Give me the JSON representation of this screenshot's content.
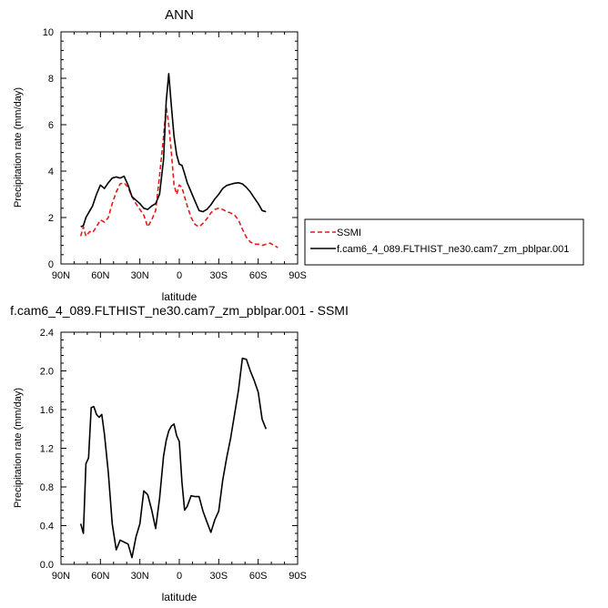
{
  "chart_data": [
    {
      "type": "line",
      "title": "ANN",
      "xlabel": "latitude",
      "ylabel": "Precipitation rate (mm/day)",
      "xlim": [
        90,
        -90
      ],
      "ylim": [
        0,
        10
      ],
      "x_ticks": [
        90,
        60,
        30,
        0,
        -30,
        -60,
        -90
      ],
      "x_tick_labels": [
        "90N",
        "60N",
        "30N",
        "0",
        "30S",
        "60S",
        "90S"
      ],
      "y_ticks": [
        0,
        2,
        4,
        6,
        8,
        10
      ],
      "y_tick_labels": [
        "0",
        "2",
        "4",
        "6",
        "8",
        "10"
      ],
      "legend_position": "right of plot, lower",
      "series": [
        {
          "name": "SSMI",
          "color": "#e41a1c",
          "dash": "dashed",
          "x": [
            75,
            73,
            71,
            68,
            66,
            63,
            60,
            57,
            54,
            51,
            48,
            45,
            42,
            39,
            36,
            33,
            30,
            27,
            24,
            21,
            18,
            15,
            12,
            10,
            8,
            6,
            4,
            2,
            0,
            -2,
            -4,
            -6,
            -9,
            -12,
            -15,
            -18,
            -21,
            -24,
            -27,
            -30,
            -33,
            -36,
            -39,
            -42,
            -45,
            -48,
            -51,
            -54,
            -57,
            -60,
            -63,
            -66,
            -69,
            -72,
            -75
          ],
          "y": [
            1.2,
            1.6,
            1.2,
            1.4,
            1.35,
            1.6,
            1.9,
            1.8,
            2.0,
            2.6,
            3.1,
            3.45,
            3.5,
            3.3,
            2.9,
            2.6,
            2.35,
            2.1,
            1.6,
            1.9,
            2.3,
            3.8,
            5.5,
            6.8,
            6.0,
            4.8,
            3.4,
            3.0,
            3.4,
            3.3,
            2.9,
            2.5,
            2.0,
            1.7,
            1.6,
            1.75,
            1.95,
            2.2,
            2.35,
            2.4,
            2.35,
            2.25,
            2.2,
            2.1,
            1.9,
            1.5,
            1.15,
            0.95,
            0.85,
            0.85,
            0.8,
            0.85,
            0.9,
            0.8,
            0.7
          ]
        },
        {
          "name": "f.cam6_4_089.FLTHIST_ne30.cam7_zm_pblpar.001",
          "color": "#000000",
          "dash": "solid",
          "x": [
            75,
            73,
            71,
            68,
            66,
            63,
            60,
            57,
            54,
            51,
            48,
            45,
            42,
            39,
            36,
            33,
            30,
            27,
            24,
            21,
            18,
            15,
            12,
            10,
            8,
            6,
            4,
            2,
            0,
            -2,
            -4,
            -6,
            -9,
            -12,
            -15,
            -18,
            -21,
            -24,
            -27,
            -30,
            -33,
            -36,
            -39,
            -42,
            -45,
            -48,
            -51,
            -54,
            -57,
            -60,
            -63,
            -66
          ],
          "y": [
            1.6,
            1.65,
            2.0,
            2.3,
            2.5,
            3.0,
            3.4,
            3.25,
            3.5,
            3.7,
            3.75,
            3.7,
            3.78,
            3.4,
            2.9,
            2.75,
            2.6,
            2.4,
            2.35,
            2.5,
            2.6,
            3.0,
            4.5,
            7.0,
            8.2,
            6.8,
            5.5,
            4.7,
            4.3,
            4.25,
            3.9,
            3.5,
            3.1,
            2.7,
            2.3,
            2.25,
            2.35,
            2.55,
            2.8,
            3.0,
            3.25,
            3.38,
            3.43,
            3.48,
            3.5,
            3.45,
            3.3,
            3.1,
            2.85,
            2.6,
            2.3,
            2.25
          ]
        }
      ]
    },
    {
      "type": "line",
      "title": "f.cam6_4_089.FLTHIST_ne30.cam7_zm_pblpar.001 - SSMI",
      "xlabel": "latitude",
      "ylabel": "Precipitation rate (mm/day)",
      "xlim": [
        90,
        -90
      ],
      "ylim": [
        0,
        2.4
      ],
      "x_ticks": [
        90,
        60,
        30,
        0,
        -30,
        -60,
        -90
      ],
      "x_tick_labels": [
        "90N",
        "60N",
        "30N",
        "0",
        "30S",
        "60S",
        "90S"
      ],
      "y_ticks": [
        0,
        0.4,
        0.8,
        1.2,
        1.6,
        2.0,
        2.4
      ],
      "y_tick_labels": [
        "0.0",
        "0.4",
        "0.8",
        "1.2",
        "1.6",
        "2.0",
        "2.4"
      ],
      "series": [
        {
          "color": "#000000",
          "dash": "solid",
          "x": [
            75,
            73,
            71,
            69,
            67,
            65,
            63,
            61,
            59,
            57,
            54,
            51,
            48,
            45,
            42,
            39,
            36,
            33,
            30,
            27,
            24,
            21,
            18,
            15,
            12,
            10,
            8,
            6,
            4,
            2,
            0,
            -2,
            -4,
            -6,
            -9,
            -12,
            -15,
            -18,
            -21,
            -24,
            -27,
            -30,
            -33,
            -36,
            -39,
            -42,
            -45,
            -48,
            -51,
            -54,
            -57,
            -60,
            -63,
            -66
          ],
          "y": [
            0.42,
            0.32,
            1.04,
            1.1,
            1.62,
            1.63,
            1.55,
            1.52,
            1.55,
            1.35,
            0.95,
            0.42,
            0.15,
            0.25,
            0.23,
            0.21,
            0.07,
            0.28,
            0.42,
            0.76,
            0.72,
            0.56,
            0.37,
            0.68,
            1.12,
            1.28,
            1.38,
            1.43,
            1.45,
            1.33,
            1.27,
            0.85,
            0.56,
            0.6,
            0.71,
            0.7,
            0.7,
            0.55,
            0.44,
            0.33,
            0.46,
            0.55,
            0.87,
            1.1,
            1.3,
            1.55,
            1.8,
            2.13,
            2.12,
            2.0,
            1.9,
            1.78,
            1.5,
            1.4
          ]
        }
      ]
    }
  ]
}
